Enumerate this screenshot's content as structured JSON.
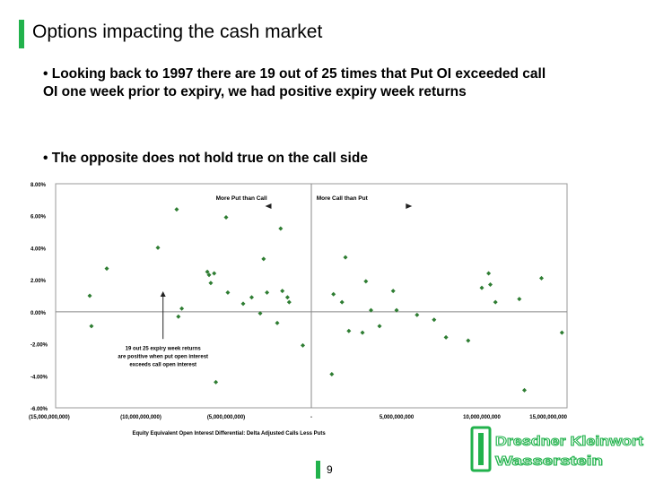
{
  "title": "Options impacting the cash market",
  "bullets": [
    "• Looking back to 1997 there are 19 out of 25 times that Put OI exceeded call OI one week prior to expiry, we had positive expiry week returns",
    "• The opposite does not hold true on the call side"
  ],
  "page_number": "9",
  "logo_text": "Dresdner Kleinwort Wasserstein",
  "colors": {
    "accent": "#22b24c",
    "points": "#2e7d32"
  },
  "chart_data": {
    "type": "scatter",
    "xlabel": "Equity Equivalent Open Interest Differential: Delta Adjusted Calls Less Puts",
    "ylabel": "",
    "xlim": [
      -15000000000,
      15000000000
    ],
    "ylim": [
      -6,
      8
    ],
    "x_tick_values": [
      -15000000000,
      -10000000000,
      -5000000000,
      0,
      5000000000,
      10000000000,
      15000000000
    ],
    "x_tick_labels": [
      "(15,000,000,000)",
      "(10,000,000,000)",
      "(5,000,000,000)",
      "-",
      "5,000,000,000",
      "10,000,000,000",
      "15,000,000,000"
    ],
    "y_tick_values": [
      8,
      6,
      4,
      2,
      0,
      -2,
      -4,
      -6
    ],
    "y_tick_labels": [
      "8.00%",
      "6.00%",
      "4.00%",
      "2.00%",
      "0.00%",
      "-2.00%",
      "-4.00%",
      "-6.00%"
    ],
    "grid": false,
    "annotations": {
      "more_put": "More Put than Call",
      "more_call": "More Call than Put",
      "note": [
        "19 out 25 expiry week returns",
        "are positive when put open interest",
        "exceeds call open interest"
      ]
    },
    "points": [
      {
        "x": -13000000000,
        "y": 1.0
      },
      {
        "x": -12900000000,
        "y": -0.9
      },
      {
        "x": -12000000000,
        "y": 2.7
      },
      {
        "x": -9000000000,
        "y": 4.0
      },
      {
        "x": -7900000000,
        "y": 6.4
      },
      {
        "x": -7800000000,
        "y": -0.3
      },
      {
        "x": -7600000000,
        "y": 0.2
      },
      {
        "x": -6100000000,
        "y": 2.5
      },
      {
        "x": -6000000000,
        "y": 2.3
      },
      {
        "x": -5900000000,
        "y": 1.8
      },
      {
        "x": -5700000000,
        "y": 2.4
      },
      {
        "x": -5600000000,
        "y": -4.4
      },
      {
        "x": -5000000000,
        "y": 5.9
      },
      {
        "x": -4900000000,
        "y": 1.2
      },
      {
        "x": -4000000000,
        "y": 0.5
      },
      {
        "x": -3500000000,
        "y": 0.9
      },
      {
        "x": -3000000000,
        "y": -0.1
      },
      {
        "x": -2800000000,
        "y": 3.3
      },
      {
        "x": -2600000000,
        "y": 1.2
      },
      {
        "x": -2000000000,
        "y": -0.7
      },
      {
        "x": -1800000000,
        "y": 5.2
      },
      {
        "x": -1700000000,
        "y": 1.3
      },
      {
        "x": -1400000000,
        "y": 0.9
      },
      {
        "x": -1300000000,
        "y": 0.6
      },
      {
        "x": -500000000,
        "y": -2.1
      },
      {
        "x": 1200000000,
        "y": -3.9
      },
      {
        "x": 1300000000,
        "y": 1.1
      },
      {
        "x": 1800000000,
        "y": 0.6
      },
      {
        "x": 2000000000,
        "y": 3.4
      },
      {
        "x": 2200000000,
        "y": -1.2
      },
      {
        "x": 3000000000,
        "y": -1.3
      },
      {
        "x": 3200000000,
        "y": 1.9
      },
      {
        "x": 3500000000,
        "y": 0.1
      },
      {
        "x": 4000000000,
        "y": -0.9
      },
      {
        "x": 4800000000,
        "y": 1.3
      },
      {
        "x": 5000000000,
        "y": 0.1
      },
      {
        "x": 6200000000,
        "y": -0.2
      },
      {
        "x": 7200000000,
        "y": -0.5
      },
      {
        "x": 7900000000,
        "y": -1.6
      },
      {
        "x": 9200000000,
        "y": -1.8
      },
      {
        "x": 10000000000,
        "y": 1.5
      },
      {
        "x": 10400000000,
        "y": 2.4
      },
      {
        "x": 10500000000,
        "y": 1.7
      },
      {
        "x": 10800000000,
        "y": 0.6
      },
      {
        "x": 12200000000,
        "y": 0.8
      },
      {
        "x": 12500000000,
        "y": -4.9
      },
      {
        "x": 13500000000,
        "y": 2.1
      },
      {
        "x": 14700000000,
        "y": -1.3
      }
    ]
  }
}
